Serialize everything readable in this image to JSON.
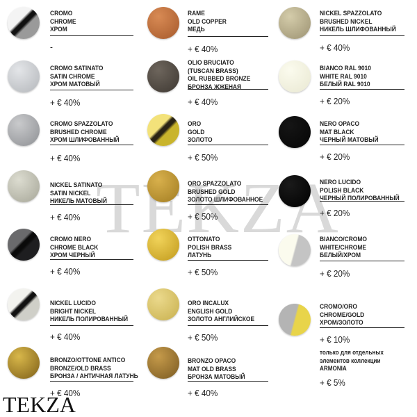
{
  "watermark": "TEKZA",
  "logo": "TEKZA",
  "columns": [
    [
      {
        "lines": [
          "CROMO",
          "CHROME",
          "ХРОМ"
        ],
        "price": "-",
        "colors": [
          "#f4f4f4",
          "#9a9a9a"
        ],
        "stripe": "#111111"
      },
      {
        "lines": [
          "CROMO SATINATO",
          "SATIN CHROME",
          "ХРОМ МАТОВЫЙ"
        ],
        "price": "+ € 40%",
        "colors": [
          "#e3e5e8",
          "#b4b7bb"
        ]
      },
      {
        "lines": [
          "CROMO SPAZZOLATO",
          "BRUSHED CHROME",
          "ХРОМ ШЛИФОВАННЫЙ"
        ],
        "price": "+ € 40%",
        "colors": [
          "#c9cacc",
          "#8e9094"
        ]
      },
      {
        "lines": [
          "NICKEL SATINATO",
          "SATIN NICKEL",
          "НИКЕЛЬ МАТОВЫЙ"
        ],
        "price": "+ € 40%",
        "colors": [
          "#dcdcd0",
          "#a6a698"
        ]
      },
      {
        "lines": [
          "CROMO NERO",
          "CHROME BLACK",
          "ХРОМ ЧЕРНЫЙ"
        ],
        "price": "+ € 40%",
        "colors": [
          "#6a6a6c",
          "#1e1e20"
        ],
        "stripe": "#0a0a0a"
      },
      {
        "lines": [
          "NICKEL LUCIDO",
          "BRIGHT NICKEL",
          "НИКЕЛЬ ПОЛИРОВАННЫЙ"
        ],
        "price": "+ € 40%",
        "colors": [
          "#f3f3ef",
          "#cfcfc8"
        ],
        "stripe": "#111111"
      },
      {
        "lines": [
          "BRONZO/OTTONE ANTICO",
          "BRONZE/OLD BRASS",
          "БРОНЗА / АНТИЧНАЯ ЛАТУНЬ"
        ],
        "price": "+ € 40%",
        "colors": [
          "#d8b74a",
          "#7e5f18"
        ]
      }
    ],
    [
      {
        "lines": [
          "RAME",
          "OLD COPPER",
          "МЕДЬ"
        ],
        "price": "+ € 40%",
        "colors": [
          "#d88a54",
          "#a65a2c"
        ]
      },
      {
        "lines": [
          "OLIO BRUCIATO",
          "(TUSCAN BRASS)",
          "OIL RUBBED BRONZE",
          "БРОНЗА ЖЖЕНАЯ"
        ],
        "price": "+ € 40%",
        "colors": [
          "#6d655c",
          "#3e3832"
        ]
      },
      {
        "lines": [
          "ORO",
          "GOLD",
          "ЗОЛОТО"
        ],
        "price": "+ € 50%",
        "colors": [
          "#f3e27a",
          "#c9b42c"
        ],
        "stripe": "#2a2414"
      },
      {
        "lines": [
          "ORO SPAZZOLATO",
          "BRUSHED GOLD",
          "ЗОЛОТО ШЛИФОВАННОЕ"
        ],
        "price": "+ € 50%",
        "colors": [
          "#d8b04c",
          "#a27d22"
        ]
      },
      {
        "lines": [
          "OTTONATO",
          "POLISH BRASS",
          "ЛАТУНЬ"
        ],
        "price": "+ € 50%",
        "colors": [
          "#f1d35a",
          "#c19a1c"
        ]
      },
      {
        "lines": [
          "ORO INCALUX",
          "ENGLISH GOLD",
          "ЗОЛОТО АНГЛИЙСКОЕ"
        ],
        "price": "+ € 50%",
        "colors": [
          "#ebd98c",
          "#c8b04e"
        ]
      },
      {
        "lines": [
          "BRONZO OPACO",
          "MAT OLD BRASS",
          "БРОНЗА МАТОВЫЙ"
        ],
        "price": "+ € 40%",
        "colors": [
          "#c59a4a",
          "#7a5a22"
        ]
      }
    ],
    [
      {
        "lines": [
          "NICKEL SPAZZOLATO",
          "BRUSHED NICKEL",
          "НИКЕЛЬ ШЛИФОВАННЫЙ"
        ],
        "price": "+ € 40%",
        "colors": [
          "#d4ccaa",
          "#9c9272"
        ]
      },
      {
        "lines": [
          "BIANCO RAL 9010",
          "WHITE RAL 9010",
          "БЕЛЫЙ RAL 9010"
        ],
        "price": "+ € 20%",
        "colors": [
          "#fbfbee",
          "#e9e8d2"
        ]
      },
      {
        "lines": [
          "NERO OPACO",
          "MAT BLACK",
          "ЧЕРНЫЙ МАТОВЫЙ"
        ],
        "price": "+ € 20%",
        "colors": [
          "#151515",
          "#050505"
        ]
      },
      {
        "lines": [
          "NERO LUCIDO",
          "POLISH BLACK",
          "ЧЕРНЫЙ ПОЛИРОВАННЫЙ"
        ],
        "price": "+ € 20%",
        "colors": [
          "#1a1a1a",
          "#000000"
        ]
      },
      {
        "lines": [
          "BIANCO/CROMO",
          "WHITE/CHROME",
          "БЕЛЫЙ/ХРОМ"
        ],
        "price": "+ € 20%",
        "colors": [
          "#fbfbee",
          "#c4c4c4"
        ],
        "split": true
      },
      {
        "lines": [
          "CROMO/ORO",
          "CHROME/GOLD",
          "ХРОМ/ЗОЛОТО"
        ],
        "price": "+ € 10%",
        "colors": [
          "#b4b4b4",
          "#e8d44a"
        ],
        "split": true
      }
    ]
  ],
  "note": {
    "lines": [
      "только для отдельных",
      "элементов коллекции",
      "ARMONIA"
    ],
    "price": "+ € 5%"
  }
}
